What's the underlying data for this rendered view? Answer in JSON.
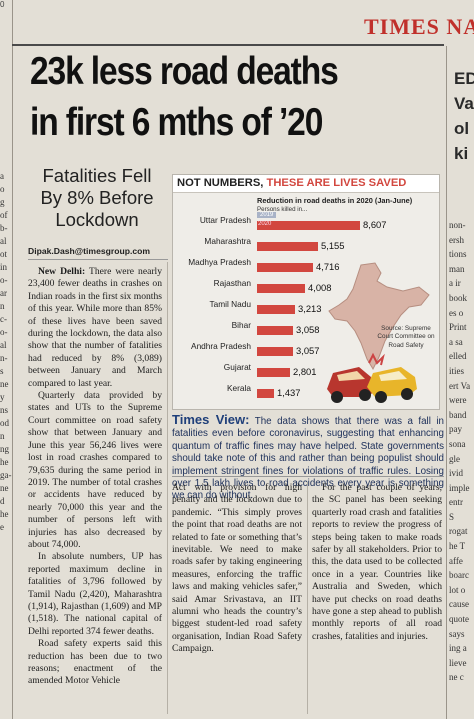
{
  "masthead": {
    "corner": "0",
    "brand": "TIMES NA"
  },
  "headline": {
    "line1": "23k less road deaths",
    "line2": "in first 6 mths of ’20"
  },
  "subhead": {
    "line1": "Fatalities Fell",
    "line2": "By 8% Before",
    "line3": "Lockdown"
  },
  "byline": "Dipak.Dash@timesgroup.com",
  "chart_banner": {
    "part1": "NOT NUMBERS,",
    "part2": "THESE ARE LIVES SAVED"
  },
  "chart_data": {
    "type": "bar",
    "title": "Reduction in road deaths in 2020 (Jan-June)",
    "subtitle": "Persons killed in...",
    "legend": {
      "y2019": "2019",
      "y2020": "2020"
    },
    "categories": [
      "Uttar Pradesh",
      "Maharashtra",
      "Madhya Pradesh",
      "Rajasthan",
      "Tamil Nadu",
      "Bihar",
      "Andhra Pradesh",
      "Gujarat",
      "Kerala"
    ],
    "series": [
      {
        "name": "2020",
        "values": [
          8607,
          5155,
          4716,
          4008,
          3213,
          3058,
          3057,
          2801,
          1437
        ]
      }
    ],
    "value_labels": [
      "8,607",
      "5,155",
      "4,716",
      "4,008",
      "3,213",
      "3,058",
      "3,057",
      "2,801",
      "1,437"
    ],
    "scale_max": 10400,
    "source": "Source: Supreme Court Committee on Road Safety"
  },
  "colors": {
    "accent_red": "#d2473f",
    "bar_2019": "#a9b3c7",
    "view_blue": "#1f3f7a"
  },
  "times_view": {
    "label": "Times View:",
    "text": "The data shows that there was a fall in fatalities even before coronavirus, suggesting that enhancing quantum of traffic fines may have helped. State governments should take note of this and rather than being populist should implement stringent fines for violations of traffic rules. Losing over 1.5 lakh lives to road accidents every year is something we can do without."
  },
  "columns": {
    "col1": [
      "New Delhi: There were nearly 23,400 fewer deaths in crashes on Indian roads in the first six months of this year. While more than 85% of these lives have been saved during the lockdown, the data also show that the number of fatalities had reduced by 8% (3,089) between January and March compared to last year.",
      "Quarterly data provided by states and UTs to the Supreme Court committee on road safety show that between January and June this year 56,246 lives were lost in road crashes compared to 79,635 during the same period in 2019. The number of total crashes or accidents have reduced by nearly 70,000 this year and the number of persons left with injuries has also decreased by about 74,000.",
      "In absolute numbers, UP has reported maximum decline in fatalities of 3,796 followed by Tamil Nadu (2,420), Maharashtra (1,914), Rajasthan (1,609) and MP (1,518). The national capital of Delhi reported 374 fewer deaths.",
      "Road safety experts said this reduction has been due to two reasons; enactment of the amended Motor Vehicle"
    ],
    "col2": "Act with provision for high penalty and the lockdown due to pandemic. “This simply proves the point that road deaths are not related to fate or something that’s inevitable. We need to make roads safer by taking engineering measures, enforcing the traffic laws and making vehicles safer,” said Amar Srivastava, an IIT alumni who heads the country’s biggest student-led road safety organisation, Indian Road Safety Campaign.",
    "col3": "For the past couple of years, the SC panel has been seeking quarterly road crash and fatalities reports to review the progress of steps being taken to make roads safer by all stakeholders. Prior to this, the data used to be collected once in a year. Countries like Australia and Sweden, which have put checks on road deaths have gone a step ahead to publish monthly reports of all road crashes, fatalities and injuries."
  },
  "left_edge": [
    "a",
    "o",
    "g",
    "of",
    "b-",
    "al",
    "ot",
    "in",
    "o-",
    "ar",
    "n",
    "c-",
    "o-",
    "al",
    "n-",
    "s",
    "ne",
    "y",
    "ns",
    "od",
    "n",
    "ng",
    "he",
    "ga-",
    "ne",
    "d",
    "he",
    "e"
  ],
  "right_edge": {
    "top": [
      "ED",
      "Va",
      "ol",
      "ki"
    ],
    "lines": [
      "non-",
      "ersh",
      "tions",
      "man",
      "a ir",
      "book",
      "es o",
      "Print",
      "a sa",
      "elled",
      "ities",
      "ert Va",
      "were",
      "band",
      "pay",
      "sona",
      "gle ",
      "ivid",
      "imple",
      "entr",
      "S",
      "rogat",
      "he T",
      "affe",
      "boarc",
      "lot o",
      "cause",
      "quote",
      "says",
      "ing a",
      "lieve",
      "ne c"
    ]
  }
}
